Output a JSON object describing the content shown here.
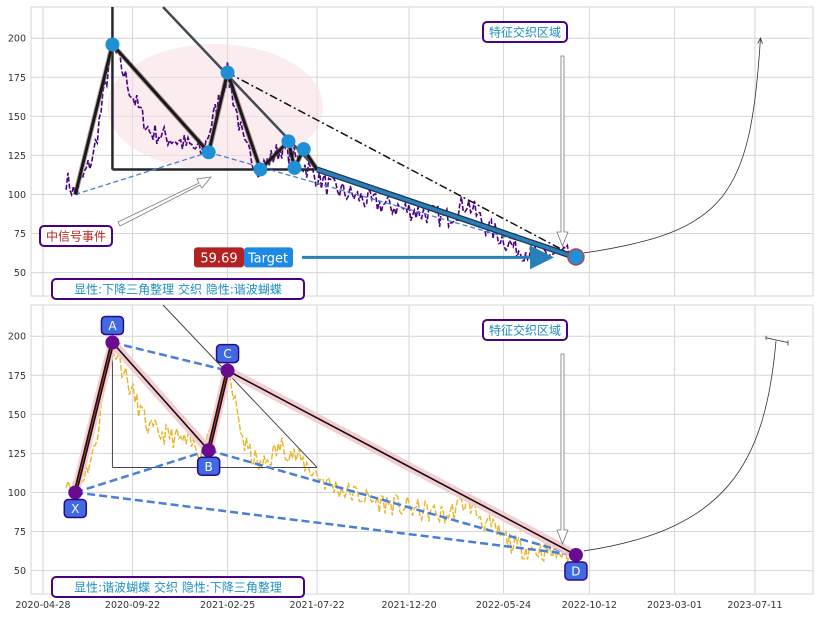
{
  "colors": {
    "grid": "#d6d6d6",
    "axis_text": "#333333",
    "top_price": "#4b0082",
    "bottom_price": "#e8b52d",
    "node_blue": "#1f8fd6",
    "node_purple": "#6a0a8e",
    "dashed_blue": "#4a7fd6",
    "label_bg": "#4169e1",
    "label_border": "#2a0a8a",
    "annot_text": "#1f8fbf",
    "annot_border": "#4b0082",
    "event_text": "#b22222",
    "pattern_dark": "#23262e",
    "pattern_fill": "#f5c9cf",
    "target_red": "#b22222",
    "target_blue": "#1e88e5",
    "arrow_line": "#2980b9"
  },
  "chart_data": [
    {
      "type": "line",
      "name": "top-panel",
      "ylim": [
        35,
        220
      ],
      "y_ticks": [
        50,
        75,
        100,
        125,
        150,
        175,
        200
      ],
      "x_range": [
        "2020-04-28",
        "2023-09-01"
      ],
      "grid": true,
      "price_key_points": [
        [
          "2020-06-05",
          110
        ],
        [
          "2020-06-20",
          100
        ],
        [
          "2020-07-20",
          125
        ],
        [
          "2020-08-20",
          196
        ],
        [
          "2020-09-20",
          165
        ],
        [
          "2020-10-20",
          140
        ],
        [
          "2020-12-01",
          135
        ],
        [
          "2021-01-15",
          127
        ],
        [
          "2021-02-25",
          178
        ],
        [
          "2021-03-25",
          130
        ],
        [
          "2021-04-20",
          116
        ],
        [
          "2021-05-25",
          130
        ],
        [
          "2021-06-20",
          122
        ],
        [
          "2021-08-10",
          105
        ],
        [
          "2021-10-20",
          95
        ],
        [
          "2021-12-20",
          90
        ],
        [
          "2022-02-20",
          85
        ],
        [
          "2022-03-25",
          95
        ],
        [
          "2022-04-25",
          80
        ],
        [
          "2022-06-15",
          65
        ],
        [
          "2022-08-10",
          62
        ],
        [
          "2022-09-15",
          60
        ]
      ],
      "nodes": [
        [
          "2020-08-20",
          196
        ],
        [
          "2021-01-25",
          127
        ],
        [
          "2021-02-25",
          178
        ],
        [
          "2021-04-20",
          116
        ],
        [
          "2021-06-05",
          134
        ],
        [
          "2021-06-15",
          117
        ],
        [
          "2021-06-30",
          129
        ],
        [
          "2022-09-20",
          60
        ]
      ],
      "pattern_path": [
        [
          "2020-06-20",
          100
        ],
        [
          "2020-08-20",
          196
        ],
        [
          "2021-01-25",
          127
        ],
        [
          "2021-02-25",
          178
        ],
        [
          "2021-04-20",
          116
        ],
        [
          "2021-06-05",
          134
        ],
        [
          "2021-06-15",
          117
        ],
        [
          "2021-06-30",
          129
        ],
        [
          "2021-07-22",
          116
        ]
      ],
      "triangle": {
        "vertical_x": "2020-08-20",
        "base_y": 116,
        "base_x_end": "2021-07-22",
        "upper_from": [
          "2020-10-01",
          230
        ],
        "upper_to": [
          "2021-07-22",
          116
        ]
      },
      "dashed_lines": [
        [
          [
            "2020-06-20",
            100
          ],
          [
            "2021-01-25",
            127
          ]
        ],
        [
          [
            "2021-01-25",
            127
          ],
          [
            "2022-09-20",
            60
          ]
        ]
      ],
      "dashdot_line": [
        [
          "2021-02-25",
          178
        ],
        [
          "2022-09-20",
          60
        ]
      ],
      "thick_arrow_line": [
        [
          "2021-07-22",
          116
        ],
        [
          "2022-09-10",
          61
        ]
      ],
      "target": {
        "value": "59.69",
        "label": "Target",
        "y": 59.69
      },
      "curve_end": [
        "2023-07-20",
        195
      ],
      "annotations": {
        "zone": "特征交织区域",
        "event": "中信号事件",
        "summary": "显性:下降三角整理 交织 隐性:谐波蝴蝶"
      }
    },
    {
      "type": "line",
      "name": "bottom-panel",
      "ylim": [
        35,
        220
      ],
      "y_ticks": [
        50,
        75,
        100,
        125,
        150,
        175,
        200
      ],
      "x_ticks": [
        "2020-04-28",
        "2020-09-22",
        "2021-02-25",
        "2021-07-22",
        "2021-12-20",
        "2022-05-24",
        "2022-10-12",
        "2023-03-01",
        "2023-07-11"
      ],
      "grid": true,
      "points": {
        "X": [
          "2020-06-20",
          100
        ],
        "A": [
          "2020-08-20",
          196
        ],
        "B": [
          "2021-01-25",
          127
        ],
        "C": [
          "2021-02-25",
          178
        ],
        "D": [
          "2022-09-20",
          60
        ]
      },
      "annotations": {
        "zone": "特征交织区域",
        "summary": "显性:谐波蝴蝶 交织 隐性:下降三角整理"
      }
    }
  ]
}
